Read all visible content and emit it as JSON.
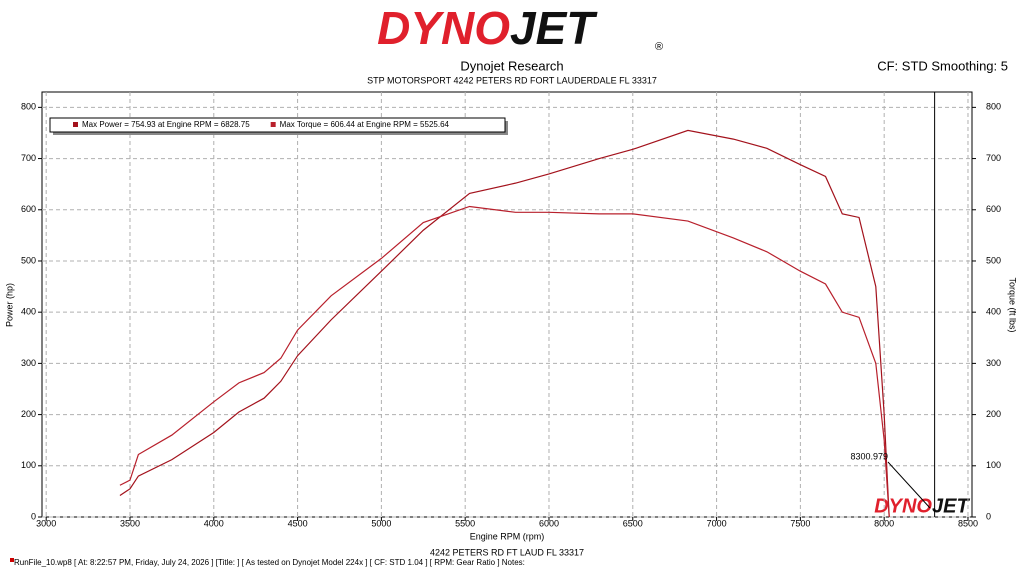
{
  "chart_data": {
    "type": "line",
    "logo": {
      "left": "DYNO",
      "right": "JET",
      "mark": "®"
    },
    "title": "Dynojet Research",
    "subtitle": "STP MOTORSPORT 4242 PETERS RD FORT LAUDERDALE FL 33317",
    "settings_label": "CF: STD Smoothing: 5",
    "y_label": "Power (hp)",
    "y2_label": "Torque (ft lbs)",
    "x_label": "Engine RPM (rpm)",
    "footer_address": "4242 PETERS RD FT LAUD FL 33317",
    "footer_info": "RunFile_10.wp8 [ At: 8:22:57 PM, Friday, July 24, 2026 ] [Title: ]  [ As tested on Dynojet Model 224x ] [ CF: STD 1.04 ] [ RPM: Gear Ratio ] Notes:",
    "x": [
      3440,
      3500,
      3550,
      3750,
      4000,
      4150,
      4300,
      4400,
      4500,
      4700,
      5000,
      5250,
      5526,
      5800,
      6000,
      6300,
      6500,
      6829,
      7100,
      7300,
      7500,
      7650,
      7750,
      7850,
      7950,
      8000,
      8030
    ],
    "series": [
      {
        "name": "Max Power = 754.93 at Engine RPM = 6828.75",
        "color": "#a3121c",
        "values": [
          42,
          55,
          80,
          112,
          165,
          205,
          232,
          265,
          315,
          385,
          480,
          560,
          632,
          652,
          670,
          700,
          718,
          755,
          738,
          720,
          688,
          665,
          592,
          585,
          450,
          200,
          0
        ]
      },
      {
        "name": "Max Torque = 606.44 at Engine RPM = 5525.64",
        "color": "#b8202c",
        "axis": "y2",
        "values": [
          62,
          72,
          122,
          160,
          225,
          262,
          282,
          310,
          365,
          432,
          505,
          575,
          606.44,
          595,
          595,
          592,
          592,
          578,
          545,
          518,
          480,
          455,
          400,
          390,
          300,
          150,
          0
        ]
      }
    ],
    "cursor": 8300.979,
    "xlim": [
      2975,
      8524
    ],
    "xticks": [
      3000,
      3500,
      4000,
      4500,
      5000,
      5500,
      6000,
      6500,
      7000,
      7500,
      8000,
      8500
    ],
    "ylim": [
      0,
      830
    ],
    "yticks": [
      0,
      100,
      200,
      300,
      400,
      500,
      600,
      700,
      800
    ],
    "y2lim": [
      0,
      830
    ],
    "y2ticks": [
      0,
      100,
      200,
      300,
      400,
      500,
      600,
      700,
      800
    ],
    "grid": true
  }
}
